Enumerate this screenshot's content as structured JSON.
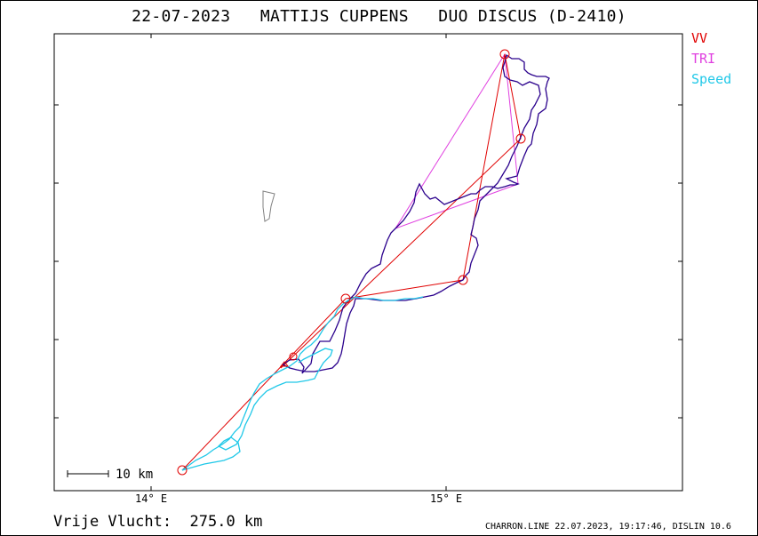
{
  "header": {
    "title": "22-07-2023   MATTIJS CUPPENS   DUO DISCUS (D-2410)"
  },
  "legend": [
    {
      "label": "VV",
      "color": "#e00000"
    },
    {
      "label": "TRI",
      "color": "#e040e0"
    },
    {
      "label": "Speed",
      "color": "#20c8e8"
    }
  ],
  "map": {
    "x_axis_labels": [
      "14° E",
      "15° E"
    ],
    "scale_bar_label": "10 km"
  },
  "footer": {
    "distance_text": "Vrije Vlucht:  275.0 km",
    "credit_text": "CHARRON.LINE 22.07.2023, 19:17:46, DISLIN 10.6"
  },
  "colors": {
    "track": "#2a008c",
    "track_fast": "#20c8e8",
    "vv": "#e00000",
    "tri": "#e040e0",
    "land": "#808080"
  }
}
